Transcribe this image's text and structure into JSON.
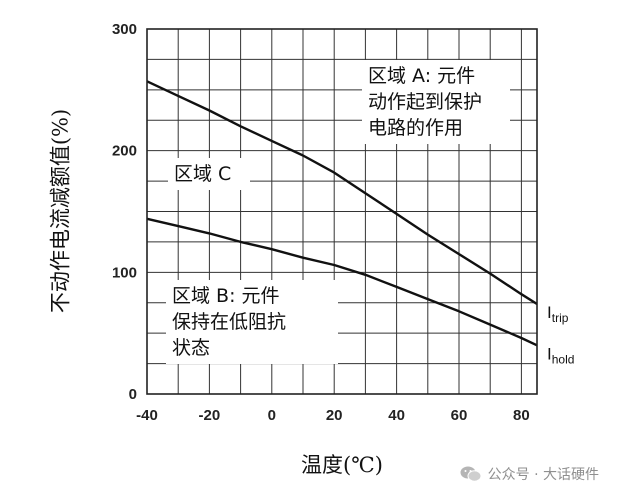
{
  "chart_data": {
    "type": "line",
    "xlabel": "温度(℃)",
    "ylabel": "不动作电流减额值(%)",
    "xlim": [
      -40,
      85
    ],
    "ylim": [
      0,
      300
    ],
    "x_ticks": [
      "-40",
      "-20",
      "0",
      "20",
      "40",
      "60",
      "80"
    ],
    "y_ticks": [
      "0",
      "100",
      "200",
      "300"
    ],
    "grid": true,
    "series": [
      {
        "name": "Itrip",
        "label_main": "I",
        "label_sub": "trip",
        "x": [
          -40,
          -30,
          -20,
          -10,
          0,
          10,
          20,
          30,
          40,
          50,
          60,
          70,
          80,
          85
        ],
        "y": [
          257,
          245,
          233,
          220,
          208,
          196,
          182,
          165,
          148,
          131,
          115,
          99,
          82,
          74
        ]
      },
      {
        "name": "Ihold",
        "label_main": "I",
        "label_sub": "hold",
        "x": [
          -40,
          -30,
          -20,
          -10,
          0,
          10,
          20,
          30,
          40,
          50,
          60,
          70,
          80,
          85
        ],
        "y": [
          144,
          138,
          132,
          125,
          119,
          112,
          106,
          98,
          88,
          78,
          68,
          57,
          46,
          40
        ]
      }
    ],
    "annotations": [
      {
        "id": "region-a",
        "lines": [
          "区域 A:  元件",
          "动作起到保护",
          "电路的作用"
        ]
      },
      {
        "id": "region-b",
        "lines": [
          "区域 B:  元件",
          "保持在低阻抗",
          "状态"
        ]
      },
      {
        "id": "region-c",
        "lines": [
          "区域 C"
        ]
      }
    ]
  },
  "watermark": {
    "text": "公众号 · 大话硬件",
    "icon": "wechat-icon",
    "color": "#8f8f8f"
  }
}
